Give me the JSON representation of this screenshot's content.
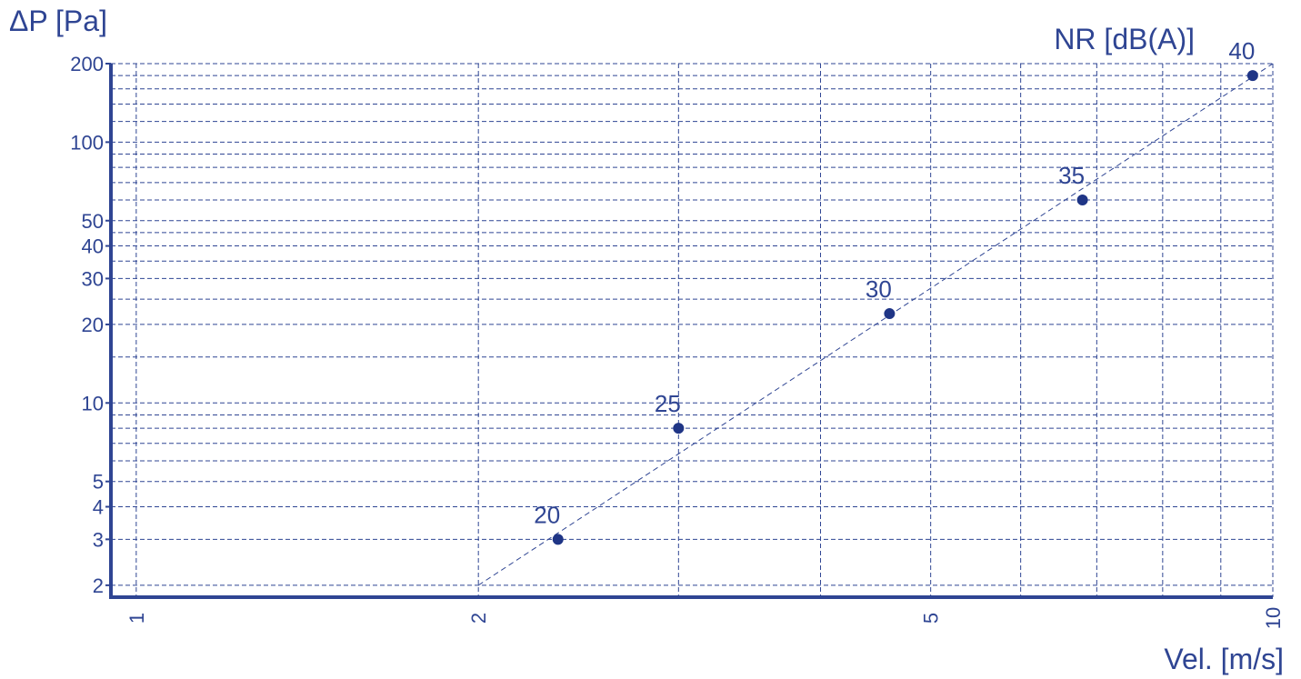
{
  "chart_data": {
    "type": "line",
    "xlabel": "Vel. [m/s]",
    "ylabel": "ΔP [Pa]",
    "series_label": "NR [dB(A)]",
    "x_scale": "log",
    "y_scale": "log",
    "xlim": [
      0.95,
      10
    ],
    "ylim": [
      1.8,
      200
    ],
    "grid": true,
    "x_ticks": [
      {
        "value": 1,
        "label": "1"
      },
      {
        "value": 2,
        "label": "2"
      },
      {
        "value": 5,
        "label": "5"
      },
      {
        "value": 10,
        "label": "10"
      }
    ],
    "y_ticks": [
      {
        "value": 2,
        "label": "2"
      },
      {
        "value": 3,
        "label": "3"
      },
      {
        "value": 4,
        "label": "4"
      },
      {
        "value": 5,
        "label": "5"
      },
      {
        "value": 10,
        "label": "10"
      },
      {
        "value": 20,
        "label": "20"
      },
      {
        "value": 30,
        "label": "30"
      },
      {
        "value": 40,
        "label": "40"
      },
      {
        "value": 50,
        "label": "50"
      },
      {
        "value": 100,
        "label": "100"
      },
      {
        "value": 200,
        "label": "200"
      }
    ],
    "x_gridlines": [
      1,
      2,
      3,
      4,
      5,
      6,
      7,
      8,
      9,
      10
    ],
    "y_gridlines": [
      2,
      3,
      4,
      5,
      6,
      7,
      8,
      9,
      10,
      15,
      20,
      25,
      30,
      35,
      40,
      45,
      50,
      60,
      70,
      80,
      90,
      100,
      120,
      140,
      160,
      180,
      200
    ],
    "line": {
      "x": [
        2,
        10
      ],
      "y": [
        2,
        200
      ]
    },
    "points": [
      {
        "x": 2.35,
        "y": 3.0,
        "label": "20"
      },
      {
        "x": 3.0,
        "y": 8.0,
        "label": "25"
      },
      {
        "x": 4.6,
        "y": 22.0,
        "label": "30"
      },
      {
        "x": 6.8,
        "y": 60.0,
        "label": "35"
      },
      {
        "x": 9.6,
        "y": 180.0,
        "label": "40"
      }
    ]
  }
}
